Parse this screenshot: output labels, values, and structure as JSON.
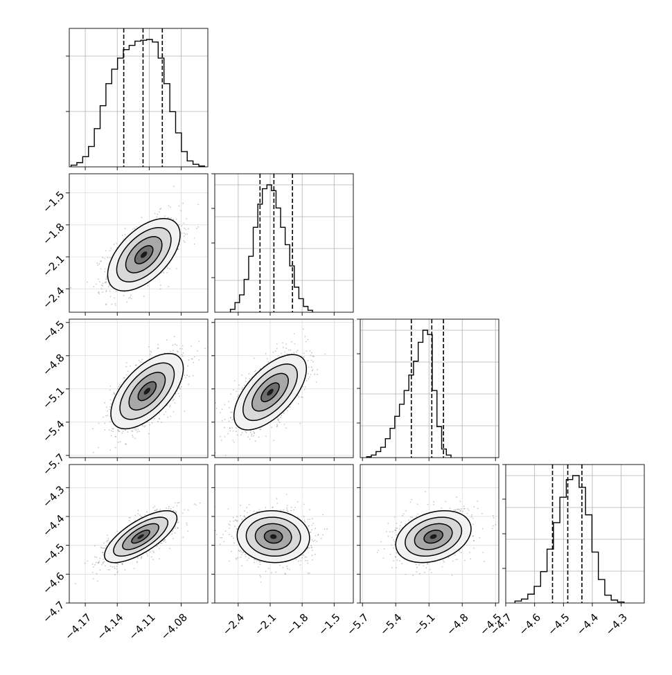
{
  "chart_data": {
    "type": "corner",
    "parameters": 4,
    "grid": true,
    "axes": [
      {
        "range": [
          -4.185,
          -4.055
        ],
        "ticks": [
          -4.17,
          -4.14,
          -4.11,
          -4.08
        ],
        "tick_labels": [
          "−4.17",
          "−4.14",
          "−4.11",
          "−4.08"
        ]
      },
      {
        "range": [
          -2.62,
          -1.32
        ],
        "ticks": [
          -2.4,
          -2.1,
          -1.8,
          -1.5
        ],
        "tick_labels": [
          "−2.4",
          "−2.1",
          "−1.8",
          "−1.5"
        ]
      },
      {
        "range": [
          -5.72,
          -4.47
        ],
        "ticks": [
          -5.7,
          -5.4,
          -5.1,
          -4.8,
          -4.5
        ],
        "tick_labels": [
          "−5.7",
          "−5.4",
          "−5.1",
          "−4.8",
          "−4.5"
        ]
      },
      {
        "range": [
          -4.7,
          -4.22
        ],
        "ticks": [
          -4.7,
          -4.6,
          -4.5,
          -4.4,
          -4.3
        ],
        "tick_labels": [
          "−4.7",
          "−4.6",
          "−4.5",
          "−4.4",
          "−4.3"
        ]
      }
    ],
    "marginals": [
      {
        "quantiles": [
          -4.1339,
          -4.1158,
          -4.0977
        ],
        "bin_range": [
          -4.1833,
          -4.058
        ],
        "counts": [
          2,
          5,
          12,
          24,
          45,
          72,
          98,
          115,
          128,
          138,
          143,
          148,
          149,
          150,
          147,
          128,
          98,
          65,
          40,
          18,
          7,
          3,
          1
        ]
      },
      {
        "quantiles": [
          -2.1956,
          -2.0651,
          -1.8911
        ],
        "bin_range": [
          -2.4731,
          -1.7026
        ],
        "counts": [
          3,
          10,
          18,
          34,
          58,
          88,
          112,
          128,
          132,
          126,
          108,
          88,
          70,
          48,
          26,
          14,
          6,
          2
        ]
      },
      {
        "quantiles": [
          -5.2592,
          -5.0745,
          -4.9693
        ],
        "bin_range": [
          -5.6623,
          -4.9011
        ],
        "counts": [
          1,
          3,
          7,
          12,
          22,
          34,
          48,
          62,
          78,
          96,
          112,
          134,
          148,
          143,
          78,
          36,
          10,
          3
        ]
      },
      {
        "quantiles": [
          -4.538,
          -4.4851,
          -4.4361
        ],
        "bin_range": [
          -4.668,
          -4.2902
        ],
        "counts": [
          2,
          4,
          9,
          17,
          32,
          55,
          82,
          108,
          126,
          130,
          118,
          90,
          52,
          24,
          8,
          3,
          1
        ]
      }
    ],
    "pairs": [
      {
        "row": 1,
        "col": 0,
        "center": [
          -4.115,
          -2.08
        ],
        "sigma": [
          0.017,
          0.17
        ],
        "rho": 0.55
      },
      {
        "row": 2,
        "col": 0,
        "center": [
          -4.112,
          -5.12
        ],
        "sigma": [
          0.017,
          0.17
        ],
        "rho": 0.6
      },
      {
        "row": 2,
        "col": 1,
        "center": [
          -2.1,
          -5.13
        ],
        "sigma": [
          0.17,
          0.17
        ],
        "rho": 0.62
      },
      {
        "row": 3,
        "col": 0,
        "center": [
          -4.118,
          -4.47
        ],
        "sigma": [
          0.017,
          0.045
        ],
        "rho": 0.72
      },
      {
        "row": 3,
        "col": 1,
        "center": [
          -2.07,
          -4.47
        ],
        "sigma": [
          0.17,
          0.045
        ],
        "rho": -0.05
      },
      {
        "row": 3,
        "col": 2,
        "center": [
          -5.06,
          -4.47
        ],
        "sigma": [
          0.17,
          0.045
        ],
        "rho": 0.3
      }
    ]
  }
}
